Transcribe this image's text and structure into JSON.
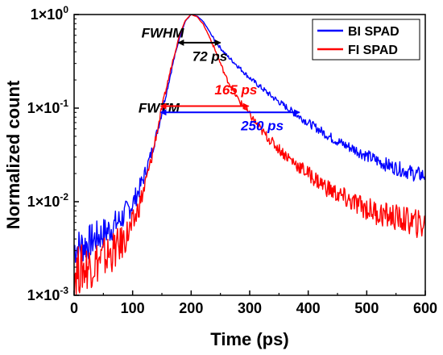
{
  "chart_data": {
    "type": "line",
    "xlabel": "Time (ps)",
    "ylabel": "Normalized count",
    "xlim": [
      0,
      600
    ],
    "ylim": [
      0.001,
      1
    ],
    "yscale": "log",
    "x_ticks": [
      0,
      100,
      200,
      300,
      400,
      500,
      600
    ],
    "x_tick_labels": [
      "0",
      "100",
      "200",
      "300",
      "400",
      "500",
      "600"
    ],
    "y_ticks": [
      0.001,
      0.01,
      0.1,
      1
    ],
    "y_tick_labels": [
      {
        "base": "1×10",
        "exp": "-3"
      },
      {
        "base": "1×10",
        "exp": "-2"
      },
      {
        "base": "1×10",
        "exp": "-1"
      },
      {
        "base": "1×10",
        "exp": "0"
      }
    ],
    "legend_position": "top-right",
    "series": [
      {
        "name": "BI SPAD",
        "color": "#0000ff",
        "x": [
          0,
          20,
          40,
          60,
          80,
          100,
          110,
          120,
          130,
          140,
          150,
          160,
          170,
          180,
          190,
          200,
          210,
          220,
          230,
          240,
          250,
          260,
          280,
          300,
          320,
          340,
          360,
          380,
          400,
          420,
          440,
          460,
          480,
          500,
          520,
          540,
          560,
          580,
          600
        ],
        "y": [
          0.0032,
          0.0035,
          0.0042,
          0.005,
          0.0065,
          0.0095,
          0.013,
          0.019,
          0.03,
          0.05,
          0.09,
          0.17,
          0.32,
          0.56,
          0.85,
          1.0,
          0.96,
          0.85,
          0.68,
          0.53,
          0.44,
          0.37,
          0.28,
          0.21,
          0.165,
          0.13,
          0.105,
          0.085,
          0.07,
          0.058,
          0.048,
          0.041,
          0.036,
          0.031,
          0.027,
          0.024,
          0.022,
          0.02,
          0.019
        ]
      },
      {
        "name": "FI SPAD",
        "color": "#ff0000",
        "x": [
          0,
          20,
          40,
          60,
          80,
          100,
          110,
          120,
          130,
          140,
          150,
          160,
          170,
          180,
          190,
          200,
          210,
          220,
          230,
          240,
          250,
          260,
          280,
          300,
          320,
          340,
          360,
          380,
          400,
          420,
          440,
          460,
          480,
          500,
          520,
          540,
          560,
          580,
          600
        ],
        "y": [
          0.0018,
          0.002,
          0.0023,
          0.0027,
          0.0035,
          0.0055,
          0.0085,
          0.014,
          0.025,
          0.05,
          0.1,
          0.19,
          0.35,
          0.6,
          0.87,
          1.0,
          0.95,
          0.8,
          0.6,
          0.43,
          0.3,
          0.21,
          0.125,
          0.085,
          0.058,
          0.042,
          0.032,
          0.025,
          0.02,
          0.016,
          0.013,
          0.011,
          0.0095,
          0.0085,
          0.0075,
          0.007,
          0.0065,
          0.006,
          0.0055
        ]
      }
    ],
    "annotations": [
      {
        "label": "FWHM",
        "x": 115,
        "y": 0.57,
        "color": "#000000"
      },
      {
        "label": "72 ps",
        "x": 202,
        "y": 0.32,
        "color": "#000000",
        "arrow_from": 178,
        "arrow_to": 250,
        "arrow_y": 0.5
      },
      {
        "label": "FWTM",
        "x": 110,
        "y": 0.09,
        "color": "#000000"
      },
      {
        "label": "165 ps",
        "x": 240,
        "y": 0.14,
        "color": "#ff0000",
        "arrow_from": 148,
        "arrow_to": 298,
        "arrow_y": 0.105
      },
      {
        "label": "250 ps",
        "x": 285,
        "y": 0.058,
        "color": "#0000ff",
        "arrow_from": 148,
        "arrow_to": 385,
        "arrow_y": 0.09
      }
    ]
  }
}
